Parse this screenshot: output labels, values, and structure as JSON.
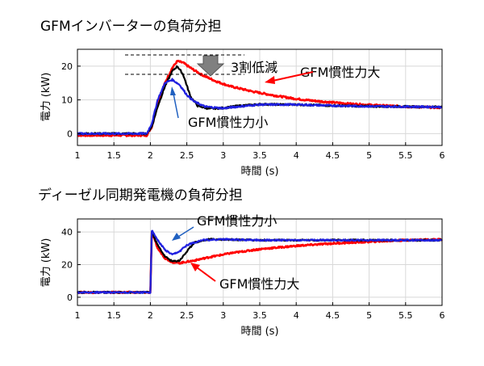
{
  "chart_data": [
    {
      "type": "line",
      "title": "GFMインバーターの負荷分担",
      "xlabel": "時間 (s)",
      "ylabel": "電力 (kW)",
      "xlim": [
        1,
        6
      ],
      "ylim": [
        -3.5,
        25
      ],
      "xticks": [
        "1",
        "1.5",
        "2",
        "2.5",
        "3",
        "3.5",
        "4",
        "4.5",
        "5",
        "5.5",
        "6"
      ],
      "yticks": [
        "0",
        "10",
        "20"
      ],
      "grid": true,
      "colors": {
        "red": "#ff0000",
        "black": "#000000",
        "blue": "#2020e0"
      },
      "series": [
        {
          "color": "red",
          "x": [
            1.0,
            1.5,
            1.95,
            2.02,
            2.1,
            2.2,
            2.3,
            2.37,
            2.45,
            2.55,
            2.7,
            2.9,
            3.1,
            3.4,
            3.7,
            4.0,
            4.3,
            4.7,
            5.0,
            5.5,
            6.0
          ],
          "y": [
            -0.5,
            -0.5,
            -0.5,
            2,
            9,
            15,
            19.5,
            21.5,
            21,
            19.5,
            17.5,
            15.5,
            14,
            12.5,
            11.3,
            10.3,
            9.6,
            8.9,
            8.5,
            8.0,
            7.7
          ]
        },
        {
          "color": "black",
          "x": [
            1.0,
            1.5,
            1.95,
            2.02,
            2.1,
            2.2,
            2.3,
            2.37,
            2.45,
            2.55,
            2.65,
            2.8,
            3.0,
            3.2,
            3.5,
            4.0,
            4.5,
            5.0,
            5.5,
            6.0
          ],
          "y": [
            0,
            0,
            0,
            2,
            8,
            14,
            18.5,
            20,
            17.5,
            11,
            8.2,
            7.4,
            7.6,
            8.2,
            8.7,
            8.6,
            8.3,
            8.1,
            8.0,
            7.9
          ]
        },
        {
          "color": "blue",
          "x": [
            1.0,
            1.5,
            1.95,
            2.02,
            2.1,
            2.2,
            2.3,
            2.4,
            2.5,
            2.6,
            2.75,
            3.0,
            3.2,
            3.5,
            4.0,
            4.5,
            5.0,
            5.5,
            6.0
          ],
          "y": [
            0,
            0,
            0,
            3,
            10,
            15,
            16,
            14.5,
            11.5,
            9.5,
            8.0,
            7.5,
            8.0,
            8.6,
            8.6,
            8.3,
            8.1,
            8.0,
            7.9
          ]
        }
      ],
      "annotations": [
        {
          "text": "3割低減"
        },
        {
          "text": "GFM慣性力大"
        },
        {
          "text": "GFM慣性力小"
        }
      ]
    },
    {
      "type": "line",
      "title": "ディーゼル同期発電機の負荷分担",
      "xlabel": "時間 (s)",
      "ylabel": "電力 (kW)",
      "xlim": [
        1,
        6
      ],
      "ylim": [
        -5,
        48
      ],
      "xticks": [
        "1",
        "1.5",
        "2",
        "2.5",
        "3",
        "3.5",
        "4",
        "4.5",
        "5",
        "5.5",
        "6"
      ],
      "yticks": [
        "0",
        "20",
        "40"
      ],
      "grid": true,
      "colors": {
        "red": "#ff0000",
        "black": "#000000",
        "blue": "#2020e0"
      },
      "series": [
        {
          "color": "red",
          "x": [
            1.0,
            1.5,
            1.97,
            2.0,
            2.02,
            2.1,
            2.2,
            2.3,
            2.4,
            2.6,
            2.8,
            3.1,
            3.5,
            4.0,
            4.5,
            5.0,
            5.5,
            6.0
          ],
          "y": [
            3,
            3,
            3,
            3,
            40,
            30,
            24,
            21.5,
            21,
            22.5,
            24.5,
            27,
            29.5,
            31.5,
            33,
            34,
            35,
            35.5
          ]
        },
        {
          "color": "black",
          "x": [
            1.0,
            1.5,
            1.97,
            2.0,
            2.02,
            2.1,
            2.2,
            2.3,
            2.4,
            2.5,
            2.6,
            2.8,
            3.0,
            3.5,
            4.0,
            4.5,
            5.0,
            5.5,
            6.0
          ],
          "y": [
            3,
            3,
            3,
            3,
            40,
            32,
            25,
            22,
            22.5,
            28,
            33.5,
            35.5,
            35.5,
            35,
            35,
            35,
            35,
            35,
            35
          ]
        },
        {
          "color": "blue",
          "x": [
            1.0,
            1.5,
            1.97,
            2.0,
            2.02,
            2.1,
            2.2,
            2.3,
            2.4,
            2.5,
            2.7,
            3.0,
            3.5,
            4.0,
            4.5,
            5.0,
            5.5,
            6.0
          ],
          "y": [
            3,
            3,
            3,
            3,
            41,
            35,
            29,
            26,
            28,
            32,
            35,
            35.5,
            35,
            35,
            35,
            35,
            35,
            35
          ]
        }
      ],
      "annotations": [
        {
          "text": "GFM慣性力小"
        },
        {
          "text": "GFM慣性力大"
        }
      ]
    }
  ]
}
